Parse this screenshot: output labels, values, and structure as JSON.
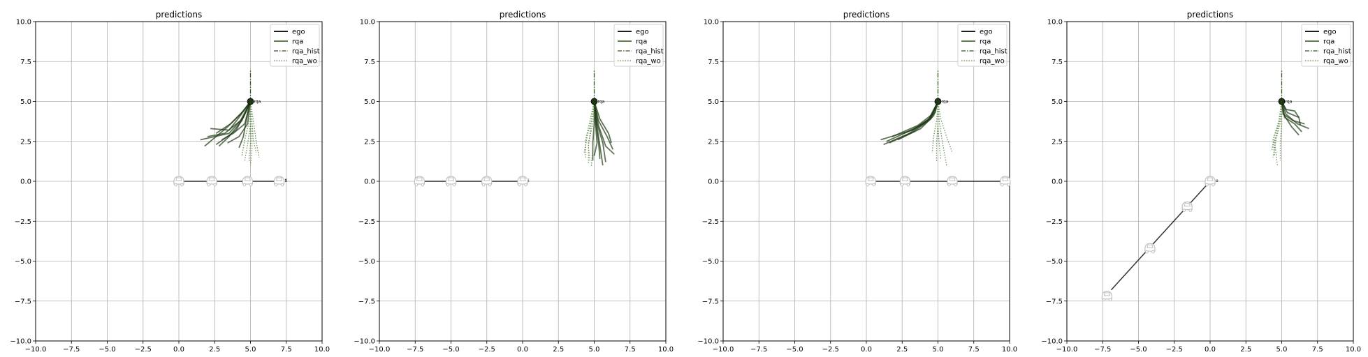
{
  "chart_data": [
    {
      "type": "line",
      "title": "predictions",
      "xlabel": "",
      "ylabel": "",
      "xlim": [
        -10,
        10
      ],
      "ylim": [
        -10,
        10
      ],
      "xticks": [
        -10,
        -7.5,
        -5,
        -2.5,
        0,
        2.5,
        5,
        7.5,
        10
      ],
      "yticks": [
        -10,
        -7.5,
        -5,
        -2.5,
        0,
        2.5,
        5,
        7.5,
        10
      ],
      "tick_labels_x": [
        "−10.0",
        "−7.5",
        "−5.0",
        "−2.5",
        "0.0",
        "2.5",
        "5.0",
        "7.5",
        "10.0"
      ],
      "tick_labels_y": [
        "−10.0",
        "−7.5",
        "−5.0",
        "−2.5",
        "0.0",
        "2.5",
        "5.0",
        "7.5",
        "10.0"
      ],
      "grid": true,
      "legend": {
        "position": "top-right",
        "entries": [
          "ego",
          "rqa",
          "rqa_hist",
          "rqa_wo"
        ]
      },
      "ego": {
        "path": [
          [
            0,
            0
          ],
          [
            7,
            0
          ]
        ],
        "cars": [
          [
            0,
            0
          ],
          [
            2.3,
            0
          ],
          [
            4.8,
            0
          ],
          [
            7,
            0
          ]
        ],
        "label": "ti"
      },
      "rqa_position": [
        5,
        5
      ],
      "rqa_label": "rqa",
      "rqa_hist": [
        [
          5,
          5
        ],
        [
          5,
          7
        ]
      ],
      "rqa_preds": [
        [
          [
            5,
            5
          ],
          [
            4.5,
            4
          ],
          [
            3.5,
            3
          ],
          [
            1.5,
            2.6
          ]
        ],
        [
          [
            5,
            5
          ],
          [
            4.3,
            3.8
          ],
          [
            3.2,
            3
          ],
          [
            2,
            2.8
          ]
        ],
        [
          [
            5,
            5
          ],
          [
            4.6,
            4.2
          ],
          [
            4,
            3.2
          ],
          [
            2.6,
            2.3
          ]
        ],
        [
          [
            5,
            5
          ],
          [
            4.4,
            3.8
          ],
          [
            3.5,
            2.8
          ],
          [
            2.8,
            2.2
          ]
        ],
        [
          [
            5,
            5
          ],
          [
            4.7,
            3.8
          ],
          [
            4.5,
            2.8
          ],
          [
            4.2,
            2.1
          ]
        ],
        [
          [
            5,
            5
          ],
          [
            4.2,
            4
          ],
          [
            3.5,
            3.2
          ],
          [
            2.2,
            3.3
          ]
        ],
        [
          [
            5,
            5
          ],
          [
            4.5,
            4.4
          ],
          [
            3.6,
            3.6
          ],
          [
            2.6,
            3.0
          ]
        ],
        [
          [
            5,
            5
          ],
          [
            4.8,
            3.6
          ],
          [
            4.2,
            2.8
          ],
          [
            3.4,
            2.4
          ]
        ],
        [
          [
            5,
            5
          ],
          [
            4.6,
            3.6
          ],
          [
            3.8,
            3.0
          ],
          [
            3.0,
            2.6
          ]
        ],
        [
          [
            5,
            5
          ],
          [
            4.3,
            4.2
          ],
          [
            3.4,
            3.4
          ],
          [
            1.8,
            2.2
          ]
        ]
      ],
      "rqa_wo": [
        [
          [
            5,
            5
          ],
          [
            5,
            3.6
          ],
          [
            4.8,
            2.3
          ],
          [
            4.6,
            1.3
          ]
        ],
        [
          [
            5,
            5
          ],
          [
            5.1,
            3.5
          ],
          [
            5.1,
            2.0
          ],
          [
            5.0,
            1.0
          ]
        ],
        [
          [
            5,
            5
          ],
          [
            5.2,
            3.8
          ],
          [
            5.4,
            2.5
          ],
          [
            5.6,
            1.5
          ]
        ],
        [
          [
            5,
            5
          ],
          [
            4.9,
            3.7
          ],
          [
            4.6,
            2.6
          ],
          [
            4.4,
            1.6
          ]
        ],
        [
          [
            5,
            5
          ],
          [
            5.1,
            3.8
          ],
          [
            5.2,
            2.6
          ],
          [
            5.4,
            1.8
          ]
        ],
        [
          [
            5,
            5
          ],
          [
            5.0,
            3.6
          ],
          [
            5.0,
            2.4
          ],
          [
            4.9,
            1.2
          ]
        ]
      ]
    },
    {
      "type": "line",
      "title": "predictions",
      "xlabel": "",
      "ylabel": "",
      "xlim": [
        -10,
        10
      ],
      "ylim": [
        -10,
        10
      ],
      "xticks": [
        -10,
        -7.5,
        -5,
        -2.5,
        0,
        2.5,
        5,
        7.5,
        10
      ],
      "yticks": [
        -10,
        -7.5,
        -5,
        -2.5,
        0,
        2.5,
        5,
        7.5,
        10
      ],
      "tick_labels_x": [
        "−10.0",
        "−7.5",
        "−5.0",
        "−2.5",
        "0.0",
        "2.5",
        "5.0",
        "7.5",
        "10.0"
      ],
      "tick_labels_y": [
        "−10.0",
        "−7.5",
        "−5.0",
        "−2.5",
        "0.0",
        "2.5",
        "5.0",
        "7.5",
        "10.0"
      ],
      "grid": true,
      "legend": {
        "position": "top-right",
        "entries": [
          "ego",
          "rqa",
          "rqa_hist",
          "rqa_wo"
        ]
      },
      "ego": {
        "path": [
          [
            -7,
            0
          ],
          [
            0,
            0
          ]
        ],
        "cars": [
          [
            -7.2,
            0
          ],
          [
            -5,
            0
          ],
          [
            -2.5,
            0
          ],
          [
            0,
            0
          ]
        ],
        "label": "i"
      },
      "rqa_position": [
        5,
        5
      ],
      "rqa_label": "rqa",
      "rqa_hist": [
        [
          5,
          5
        ],
        [
          5,
          7
        ]
      ],
      "rqa_preds": [
        [
          [
            5,
            5
          ],
          [
            5.3,
            3.5
          ],
          [
            5.8,
            2.2
          ],
          [
            6.4,
            1.7
          ]
        ],
        [
          [
            5,
            5
          ],
          [
            5.2,
            3.6
          ],
          [
            5.6,
            2.4
          ],
          [
            5.8,
            1.2
          ]
        ],
        [
          [
            5,
            5
          ],
          [
            5.1,
            3.7
          ],
          [
            5.3,
            2.5
          ],
          [
            5.4,
            1.4
          ]
        ],
        [
          [
            5,
            5
          ],
          [
            5.3,
            3.8
          ],
          [
            5.9,
            2.8
          ],
          [
            6.3,
            2.0
          ]
        ],
        [
          [
            5,
            5
          ],
          [
            5.2,
            3.4
          ],
          [
            5.4,
            2.2
          ],
          [
            5.6,
            1.0
          ]
        ],
        [
          [
            5,
            5
          ],
          [
            5.0,
            3.6
          ],
          [
            4.9,
            2.4
          ],
          [
            4.9,
            1.3
          ]
        ],
        [
          [
            5,
            5
          ],
          [
            5.1,
            3.5
          ],
          [
            5.2,
            2.4
          ],
          [
            5.0,
            1.6
          ]
        ],
        [
          [
            5,
            5
          ],
          [
            5.4,
            3.9
          ],
          [
            6.0,
            3.0
          ],
          [
            6.2,
            2.4
          ]
        ]
      ],
      "rqa_wo": [
        [
          [
            5,
            5
          ],
          [
            4.8,
            3.8
          ],
          [
            4.5,
            2.8
          ],
          [
            4.3,
            1.8
          ]
        ],
        [
          [
            5,
            5
          ],
          [
            4.9,
            3.6
          ],
          [
            4.6,
            2.4
          ],
          [
            4.6,
            1.1
          ]
        ],
        [
          [
            5,
            5
          ],
          [
            4.7,
            3.8
          ],
          [
            4.4,
            2.6
          ],
          [
            4.4,
            1.5
          ]
        ],
        [
          [
            5,
            5
          ],
          [
            5.0,
            3.5
          ],
          [
            4.9,
            2.2
          ],
          [
            4.8,
            0.9
          ]
        ],
        [
          [
            5,
            5
          ],
          [
            4.8,
            3.7
          ],
          [
            4.6,
            2.2
          ],
          [
            4.7,
            1.2
          ]
        ]
      ]
    },
    {
      "type": "line",
      "title": "predictions",
      "xlabel": "",
      "ylabel": "",
      "xlim": [
        -10,
        10
      ],
      "ylim": [
        -10,
        10
      ],
      "xticks": [
        -10,
        -7.5,
        -5,
        -2.5,
        0,
        2.5,
        5,
        7.5,
        10
      ],
      "yticks": [
        -10,
        -7.5,
        -5,
        -2.5,
        0,
        2.5,
        5,
        7.5,
        10
      ],
      "tick_labels_x": [
        "−10.0",
        "−7.5",
        "−5.0",
        "−2.5",
        "0.0",
        "2.5",
        "5.0",
        "7.5",
        "10.0"
      ],
      "tick_labels_y": [
        "−10.0",
        "−7.5",
        "−5.0",
        "−2.5",
        "0.0",
        "2.5",
        "5.0",
        "7.5",
        "10.0"
      ],
      "grid": true,
      "legend": {
        "position": "top-right",
        "entries": [
          "ego",
          "rqa",
          "rqa_hist",
          "rqa_wo"
        ]
      },
      "ego": {
        "path": [
          [
            0.5,
            0
          ],
          [
            9.7,
            0
          ]
        ],
        "cars": [
          [
            0.3,
            0
          ],
          [
            2.7,
            0
          ],
          [
            6,
            0
          ],
          [
            9.7,
            0
          ]
        ],
        "label": ""
      },
      "rqa_position": [
        5,
        5
      ],
      "rqa_label": "rqa",
      "rqa_hist": [
        [
          5,
          5
        ],
        [
          5,
          7
        ]
      ],
      "rqa_preds": [
        [
          [
            5,
            5
          ],
          [
            4.4,
            3.9
          ],
          [
            3.2,
            3.2
          ],
          [
            1.0,
            2.6
          ]
        ],
        [
          [
            5,
            5
          ],
          [
            4.5,
            4.0
          ],
          [
            3.4,
            3.3
          ],
          [
            1.4,
            2.5
          ]
        ],
        [
          [
            5,
            5
          ],
          [
            4.6,
            4.2
          ],
          [
            3.6,
            3.5
          ],
          [
            1.8,
            2.8
          ]
        ],
        [
          [
            5,
            5
          ],
          [
            4.3,
            3.8
          ],
          [
            3.0,
            3.0
          ],
          [
            1.2,
            2.3
          ]
        ],
        [
          [
            5,
            5
          ],
          [
            4.7,
            4.1
          ],
          [
            3.8,
            3.3
          ],
          [
            2.2,
            2.6
          ]
        ],
        [
          [
            5,
            5
          ],
          [
            4.5,
            3.9
          ],
          [
            3.3,
            3.1
          ],
          [
            1.6,
            2.4
          ]
        ],
        [
          [
            5,
            5
          ],
          [
            4.8,
            4.3
          ],
          [
            4.0,
            3.6
          ],
          [
            2.6,
            3.0
          ]
        ]
      ],
      "rqa_wo": [
        [
          [
            5,
            5
          ],
          [
            5.1,
            3.7
          ],
          [
            5.3,
            2.5
          ],
          [
            5.6,
            1.0
          ]
        ],
        [
          [
            5,
            5
          ],
          [
            5.0,
            3.6
          ],
          [
            4.9,
            2.4
          ],
          [
            4.9,
            1.2
          ]
        ],
        [
          [
            5,
            5
          ],
          [
            4.9,
            3.8
          ],
          [
            4.7,
            2.8
          ],
          [
            4.6,
            1.8
          ]
        ],
        [
          [
            5,
            5
          ],
          [
            5.2,
            3.9
          ],
          [
            5.6,
            2.8
          ],
          [
            6.0,
            1.8
          ]
        ],
        [
          [
            5,
            5
          ],
          [
            5.0,
            3.5
          ],
          [
            5.1,
            2.2
          ],
          [
            5.2,
            1.4
          ]
        ]
      ]
    },
    {
      "type": "line",
      "title": "predictions",
      "xlabel": "",
      "ylabel": "",
      "xlim": [
        -10,
        10
      ],
      "ylim": [
        -10,
        10
      ],
      "xticks": [
        -10,
        -7.5,
        -5,
        -2.5,
        0,
        2.5,
        5,
        7.5,
        10
      ],
      "yticks": [
        -10,
        -7.5,
        -5,
        -2.5,
        0,
        2.5,
        5,
        7.5,
        10
      ],
      "tick_labels_x": [
        "−10.0",
        "−7.5",
        "−5.0",
        "−2.5",
        "0.0",
        "2.5",
        "5.0",
        "7.5",
        "10.0"
      ],
      "tick_labels_y": [
        "−10.0",
        "−7.5",
        "−5.0",
        "−2.5",
        "0.0",
        "2.5",
        "5.0",
        "7.5",
        "10.0"
      ],
      "grid": true,
      "legend": {
        "position": "top-right",
        "entries": [
          "ego",
          "rqa",
          "rqa_hist",
          "rqa_wo"
        ]
      },
      "ego": {
        "path": [
          [
            -6.9,
            -6.8
          ],
          [
            0,
            0
          ]
        ],
        "cars": [
          [
            -7.2,
            -7.2
          ],
          [
            -4.2,
            -4.2
          ],
          [
            -1.6,
            -1.6
          ],
          [
            0,
            0
          ]
        ],
        "label": "o"
      },
      "rqa_position": [
        5,
        5
      ],
      "rqa_label": "rqa",
      "rqa_hist": [
        [
          5,
          5
        ],
        [
          5,
          7
        ]
      ],
      "rqa_preds": [
        [
          [
            5,
            5
          ],
          [
            5.3,
            4.2
          ],
          [
            6.1,
            3.6
          ],
          [
            6.9,
            3.3
          ]
        ],
        [
          [
            5,
            5
          ],
          [
            5.2,
            4.0
          ],
          [
            5.9,
            3.6
          ],
          [
            6.4,
            3.1
          ]
        ],
        [
          [
            5,
            5
          ],
          [
            5.4,
            4.3
          ],
          [
            6.2,
            4.0
          ],
          [
            6.3,
            3.5
          ]
        ],
        [
          [
            5,
            5
          ],
          [
            5.1,
            4.2
          ],
          [
            5.8,
            3.8
          ],
          [
            6.6,
            3.6
          ]
        ],
        [
          [
            5,
            5
          ],
          [
            5.3,
            4.5
          ],
          [
            5.9,
            4.4
          ],
          [
            6.2,
            4.0
          ]
        ],
        [
          [
            5,
            5
          ],
          [
            5.2,
            4.1
          ],
          [
            5.7,
            3.4
          ],
          [
            6.2,
            2.9
          ]
        ]
      ],
      "rqa_wo": [
        [
          [
            5,
            5
          ],
          [
            4.9,
            3.7
          ],
          [
            4.6,
            2.6
          ],
          [
            4.4,
            1.5
          ]
        ],
        [
          [
            5,
            5
          ],
          [
            4.8,
            3.6
          ],
          [
            4.5,
            2.5
          ],
          [
            4.7,
            1.0
          ]
        ],
        [
          [
            5,
            5
          ],
          [
            4.9,
            3.9
          ],
          [
            4.5,
            2.9
          ],
          [
            4.3,
            1.9
          ]
        ],
        [
          [
            5,
            5
          ],
          [
            5.0,
            3.6
          ],
          [
            4.9,
            2.4
          ],
          [
            4.9,
            1.3
          ]
        ],
        [
          [
            5,
            5
          ],
          [
            4.8,
            3.8
          ],
          [
            4.4,
            2.6
          ],
          [
            4.5,
            1.6
          ]
        ]
      ]
    }
  ],
  "colors": {
    "ego": "#000000",
    "rqa": "#4a6e34",
    "rqa_dark": "#1e3a14",
    "rqa_hist": "#2f5b1d",
    "rqa_wo": "#5e8a48",
    "grid": "#b0b0b0",
    "car": "#c0c0c0"
  }
}
